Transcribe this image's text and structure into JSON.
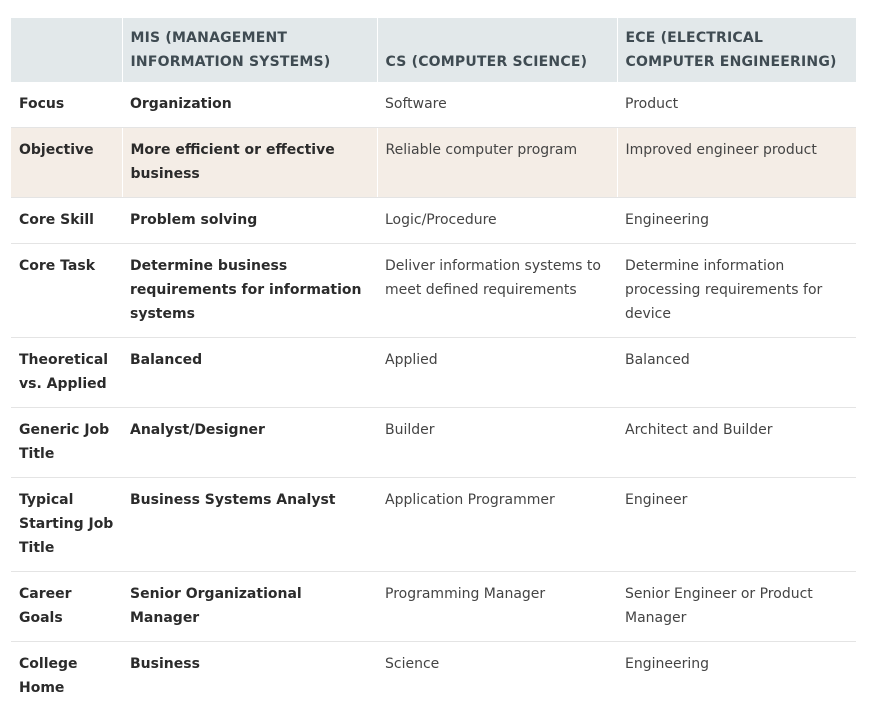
{
  "table": {
    "headers": [
      "",
      "MIS (MANAGEMENT INFORMATION SYSTEMS)",
      "CS (COMPUTER SCIENCE)",
      "ECE (ELECTRICAL COMPUTER ENGINEERING)"
    ],
    "rows": [
      {
        "label": "Focus",
        "mis": "Organization",
        "cs": "Software",
        "ece": "Product"
      },
      {
        "label": "Objective",
        "mis": "More efficient or effective business",
        "cs": "Reliable computer program",
        "ece": "Improved engineer product"
      },
      {
        "label": "Core Skill",
        "mis": "Problem solving",
        "cs": "Logic/Procedure",
        "ece": "Engineering"
      },
      {
        "label": "Core Task",
        "mis": "Determine business requirements for information systems",
        "cs": "Deliver information systems to meet defined requirements",
        "ece": "Determine information processing requirements for device"
      },
      {
        "label": "Theoretical vs. Applied",
        "mis": "Balanced",
        "cs": "Applied",
        "ece": "Balanced"
      },
      {
        "label": "Generic Job Title",
        "mis": "Analyst/Designer",
        "cs": "Builder",
        "ece": "Architect and Builder"
      },
      {
        "label": "Typical Starting Job Title",
        "mis": "Business Systems Analyst",
        "cs": "Application Programmer",
        "ece": "Engineer"
      },
      {
        "label": "Career Goals",
        "mis": "Senior Organizational Manager",
        "cs": "Programming Manager",
        "ece": "Senior Engineer or Product Manager"
      },
      {
        "label": "College Home",
        "mis": "Business",
        "cs": "Science",
        "ece": "Engineering"
      }
    ]
  },
  "colors": {
    "header_bg": "#e2e8ea",
    "highlight_row_bg": "#f4ede6",
    "row_divider": "#e4e4e4"
  }
}
